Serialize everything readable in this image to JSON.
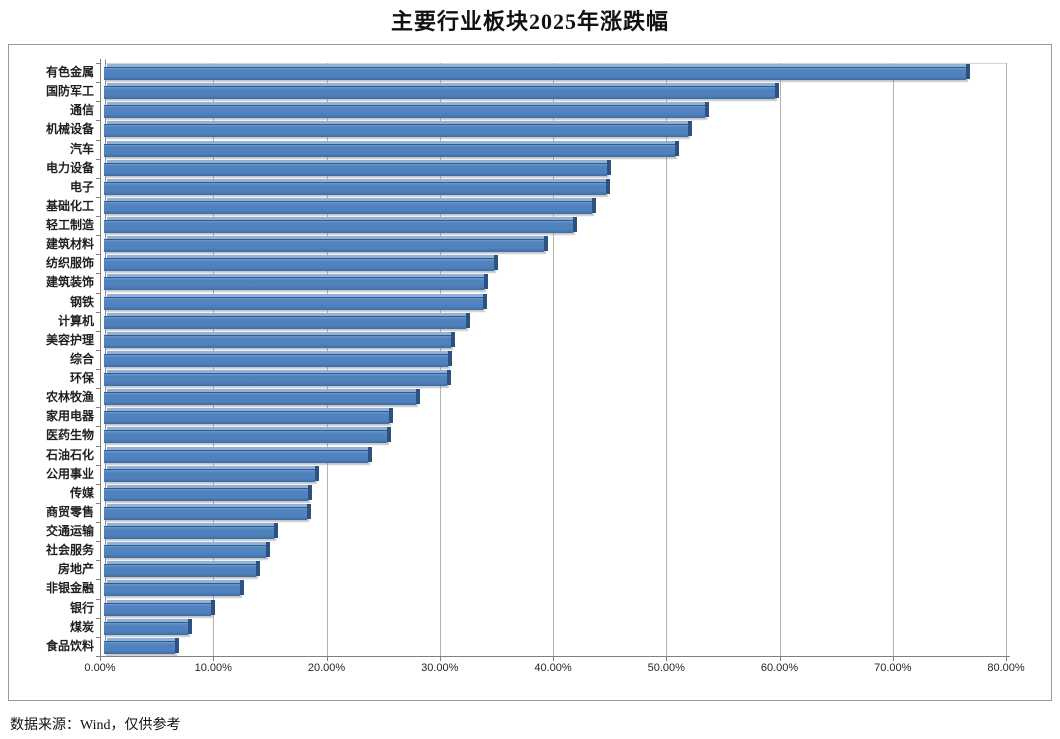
{
  "title": "主要行业板块2025年涨跌幅",
  "footnote": "数据来源：Wind，仅供参考",
  "chart_data": {
    "type": "bar",
    "orientation": "horizontal",
    "title": "主要行业板块2025年涨跌幅",
    "categories": [
      "有色金属",
      "国防军工",
      "通信",
      "机械设备",
      "汽车",
      "电力设备",
      "电子",
      "基础化工",
      "轻工制造",
      "建筑材料",
      "纺织服饰",
      "建筑装饰",
      "钢铁",
      "计算机",
      "美容护理",
      "综合",
      "环保",
      "农林牧渔",
      "家用电器",
      "医药生物",
      "石油石化",
      "公用事业",
      "传媒",
      "商贸零售",
      "交通运输",
      "社会服务",
      "房地产",
      "非银金融",
      "银行",
      "煤炭",
      "食品饮料"
    ],
    "values": [
      76.5,
      59.6,
      53.4,
      51.9,
      50.8,
      44.8,
      44.7,
      43.4,
      41.8,
      39.2,
      34.8,
      33.9,
      33.8,
      32.3,
      31.0,
      30.7,
      30.6,
      27.9,
      25.5,
      25.3,
      23.7,
      19.0,
      18.4,
      18.3,
      15.4,
      14.7,
      13.8,
      12.4,
      9.8,
      7.8,
      6.6
    ],
    "value_unit": "%",
    "xlabel": "",
    "ylabel": "",
    "xlim": [
      0,
      80
    ],
    "x_ticks": [
      "0.00%",
      "10.00%",
      "20.00%",
      "30.00%",
      "40.00%",
      "50.00%",
      "60.00%",
      "70.00%",
      "80.00%"
    ],
    "grid": true,
    "legend": "none",
    "bar_color": "#4F81BD",
    "bar_cap_color": "#2C5281",
    "gridline_color": "#B3B3B3",
    "axis_color": "#808080"
  }
}
